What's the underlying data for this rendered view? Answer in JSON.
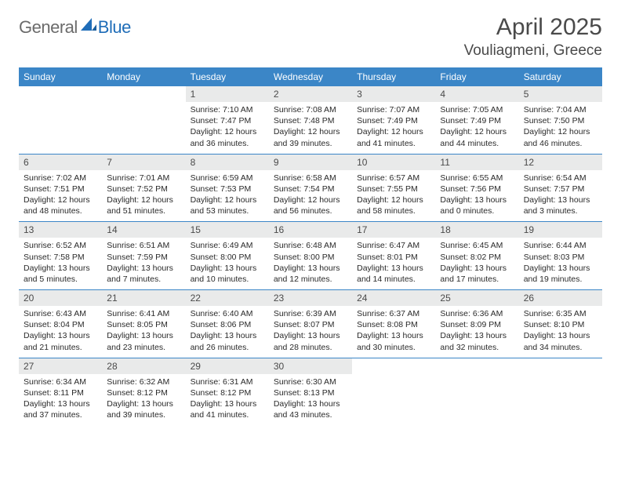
{
  "logo": {
    "general": "General",
    "blue": "Blue"
  },
  "title": "April 2025",
  "location": "Vouliagmeni, Greece",
  "colors": {
    "header_bg": "#3b86c7",
    "header_text": "#ffffff",
    "daynum_bg": "#e9eaea",
    "border": "#3b86c7",
    "logo_gray": "#6b6b6b",
    "logo_blue": "#1f6db8"
  },
  "weekdays": [
    "Sunday",
    "Monday",
    "Tuesday",
    "Wednesday",
    "Thursday",
    "Friday",
    "Saturday"
  ],
  "weeks": [
    [
      null,
      null,
      {
        "n": "1",
        "sr": "7:10 AM",
        "ss": "7:47 PM",
        "dl": "12 hours and 36 minutes."
      },
      {
        "n": "2",
        "sr": "7:08 AM",
        "ss": "7:48 PM",
        "dl": "12 hours and 39 minutes."
      },
      {
        "n": "3",
        "sr": "7:07 AM",
        "ss": "7:49 PM",
        "dl": "12 hours and 41 minutes."
      },
      {
        "n": "4",
        "sr": "7:05 AM",
        "ss": "7:49 PM",
        "dl": "12 hours and 44 minutes."
      },
      {
        "n": "5",
        "sr": "7:04 AM",
        "ss": "7:50 PM",
        "dl": "12 hours and 46 minutes."
      }
    ],
    [
      {
        "n": "6",
        "sr": "7:02 AM",
        "ss": "7:51 PM",
        "dl": "12 hours and 48 minutes."
      },
      {
        "n": "7",
        "sr": "7:01 AM",
        "ss": "7:52 PM",
        "dl": "12 hours and 51 minutes."
      },
      {
        "n": "8",
        "sr": "6:59 AM",
        "ss": "7:53 PM",
        "dl": "12 hours and 53 minutes."
      },
      {
        "n": "9",
        "sr": "6:58 AM",
        "ss": "7:54 PM",
        "dl": "12 hours and 56 minutes."
      },
      {
        "n": "10",
        "sr": "6:57 AM",
        "ss": "7:55 PM",
        "dl": "12 hours and 58 minutes."
      },
      {
        "n": "11",
        "sr": "6:55 AM",
        "ss": "7:56 PM",
        "dl": "13 hours and 0 minutes."
      },
      {
        "n": "12",
        "sr": "6:54 AM",
        "ss": "7:57 PM",
        "dl": "13 hours and 3 minutes."
      }
    ],
    [
      {
        "n": "13",
        "sr": "6:52 AM",
        "ss": "7:58 PM",
        "dl": "13 hours and 5 minutes."
      },
      {
        "n": "14",
        "sr": "6:51 AM",
        "ss": "7:59 PM",
        "dl": "13 hours and 7 minutes."
      },
      {
        "n": "15",
        "sr": "6:49 AM",
        "ss": "8:00 PM",
        "dl": "13 hours and 10 minutes."
      },
      {
        "n": "16",
        "sr": "6:48 AM",
        "ss": "8:00 PM",
        "dl": "13 hours and 12 minutes."
      },
      {
        "n": "17",
        "sr": "6:47 AM",
        "ss": "8:01 PM",
        "dl": "13 hours and 14 minutes."
      },
      {
        "n": "18",
        "sr": "6:45 AM",
        "ss": "8:02 PM",
        "dl": "13 hours and 17 minutes."
      },
      {
        "n": "19",
        "sr": "6:44 AM",
        "ss": "8:03 PM",
        "dl": "13 hours and 19 minutes."
      }
    ],
    [
      {
        "n": "20",
        "sr": "6:43 AM",
        "ss": "8:04 PM",
        "dl": "13 hours and 21 minutes."
      },
      {
        "n": "21",
        "sr": "6:41 AM",
        "ss": "8:05 PM",
        "dl": "13 hours and 23 minutes."
      },
      {
        "n": "22",
        "sr": "6:40 AM",
        "ss": "8:06 PM",
        "dl": "13 hours and 26 minutes."
      },
      {
        "n": "23",
        "sr": "6:39 AM",
        "ss": "8:07 PM",
        "dl": "13 hours and 28 minutes."
      },
      {
        "n": "24",
        "sr": "6:37 AM",
        "ss": "8:08 PM",
        "dl": "13 hours and 30 minutes."
      },
      {
        "n": "25",
        "sr": "6:36 AM",
        "ss": "8:09 PM",
        "dl": "13 hours and 32 minutes."
      },
      {
        "n": "26",
        "sr": "6:35 AM",
        "ss": "8:10 PM",
        "dl": "13 hours and 34 minutes."
      }
    ],
    [
      {
        "n": "27",
        "sr": "6:34 AM",
        "ss": "8:11 PM",
        "dl": "13 hours and 37 minutes."
      },
      {
        "n": "28",
        "sr": "6:32 AM",
        "ss": "8:12 PM",
        "dl": "13 hours and 39 minutes."
      },
      {
        "n": "29",
        "sr": "6:31 AM",
        "ss": "8:12 PM",
        "dl": "13 hours and 41 minutes."
      },
      {
        "n": "30",
        "sr": "6:30 AM",
        "ss": "8:13 PM",
        "dl": "13 hours and 43 minutes."
      },
      null,
      null,
      null
    ]
  ],
  "labels": {
    "sunrise": "Sunrise:",
    "sunset": "Sunset:",
    "daylight": "Daylight:"
  }
}
